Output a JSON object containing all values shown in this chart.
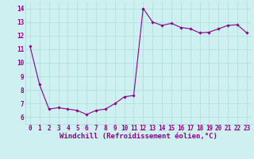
{
  "x": [
    0,
    1,
    2,
    3,
    4,
    5,
    6,
    7,
    8,
    9,
    10,
    11,
    12,
    13,
    14,
    15,
    16,
    17,
    18,
    19,
    20,
    21,
    22,
    23
  ],
  "y": [
    11.2,
    8.4,
    6.6,
    6.7,
    6.6,
    6.5,
    6.2,
    6.5,
    6.6,
    7.0,
    7.5,
    7.6,
    14.0,
    13.0,
    12.75,
    12.9,
    12.6,
    12.5,
    12.2,
    12.25,
    12.5,
    12.75,
    12.8,
    12.2
  ],
  "line_color": "#8B008B",
  "marker": "D",
  "marker_size": 1.8,
  "xlabel": "Windchill (Refroidissement éolien,°C)",
  "xlabel_fontsize": 6.5,
  "bg_color": "#cef0f0",
  "grid_color": "#aadddd",
  "tick_color": "#8B008B",
  "ylim": [
    5.5,
    14.5
  ],
  "xlim": [
    -0.5,
    23.5
  ],
  "yticks": [
    6,
    7,
    8,
    9,
    10,
    11,
    12,
    13,
    14
  ],
  "xticks": [
    0,
    1,
    2,
    3,
    4,
    5,
    6,
    7,
    8,
    9,
    10,
    11,
    12,
    13,
    14,
    15,
    16,
    17,
    18,
    19,
    20,
    21,
    22,
    23
  ],
  "tick_fontsize": 5.5,
  "linewidth": 0.8
}
